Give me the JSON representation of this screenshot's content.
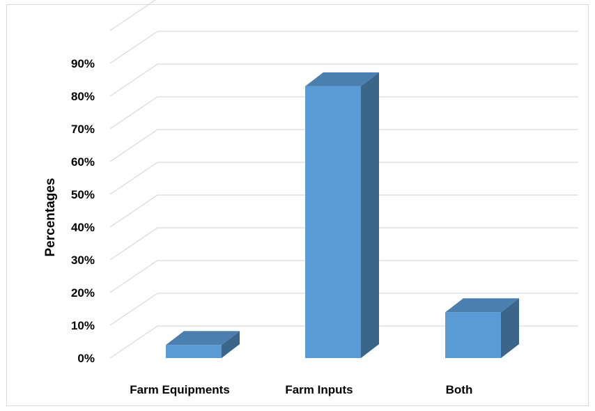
{
  "chart_data": {
    "type": "bar",
    "style": "3d-column",
    "categories": [
      "Farm Equipments",
      "Farm Inputs",
      "Both"
    ],
    "values": [
      4,
      83,
      14
    ],
    "unit": "%",
    "xlabel": "",
    "ylabel": "Percentages",
    "ylim": [
      0,
      90
    ],
    "yticks": [
      "0%",
      "10%",
      "20%",
      "30%",
      "40%",
      "50%",
      "60%",
      "70%",
      "80%",
      "90%"
    ],
    "grid": true,
    "legend": "none",
    "colors": {
      "front": "#5b9bd5",
      "top": "#4a7fb0",
      "side": "#3b6589",
      "grid": "#d9d9d9"
    }
  }
}
